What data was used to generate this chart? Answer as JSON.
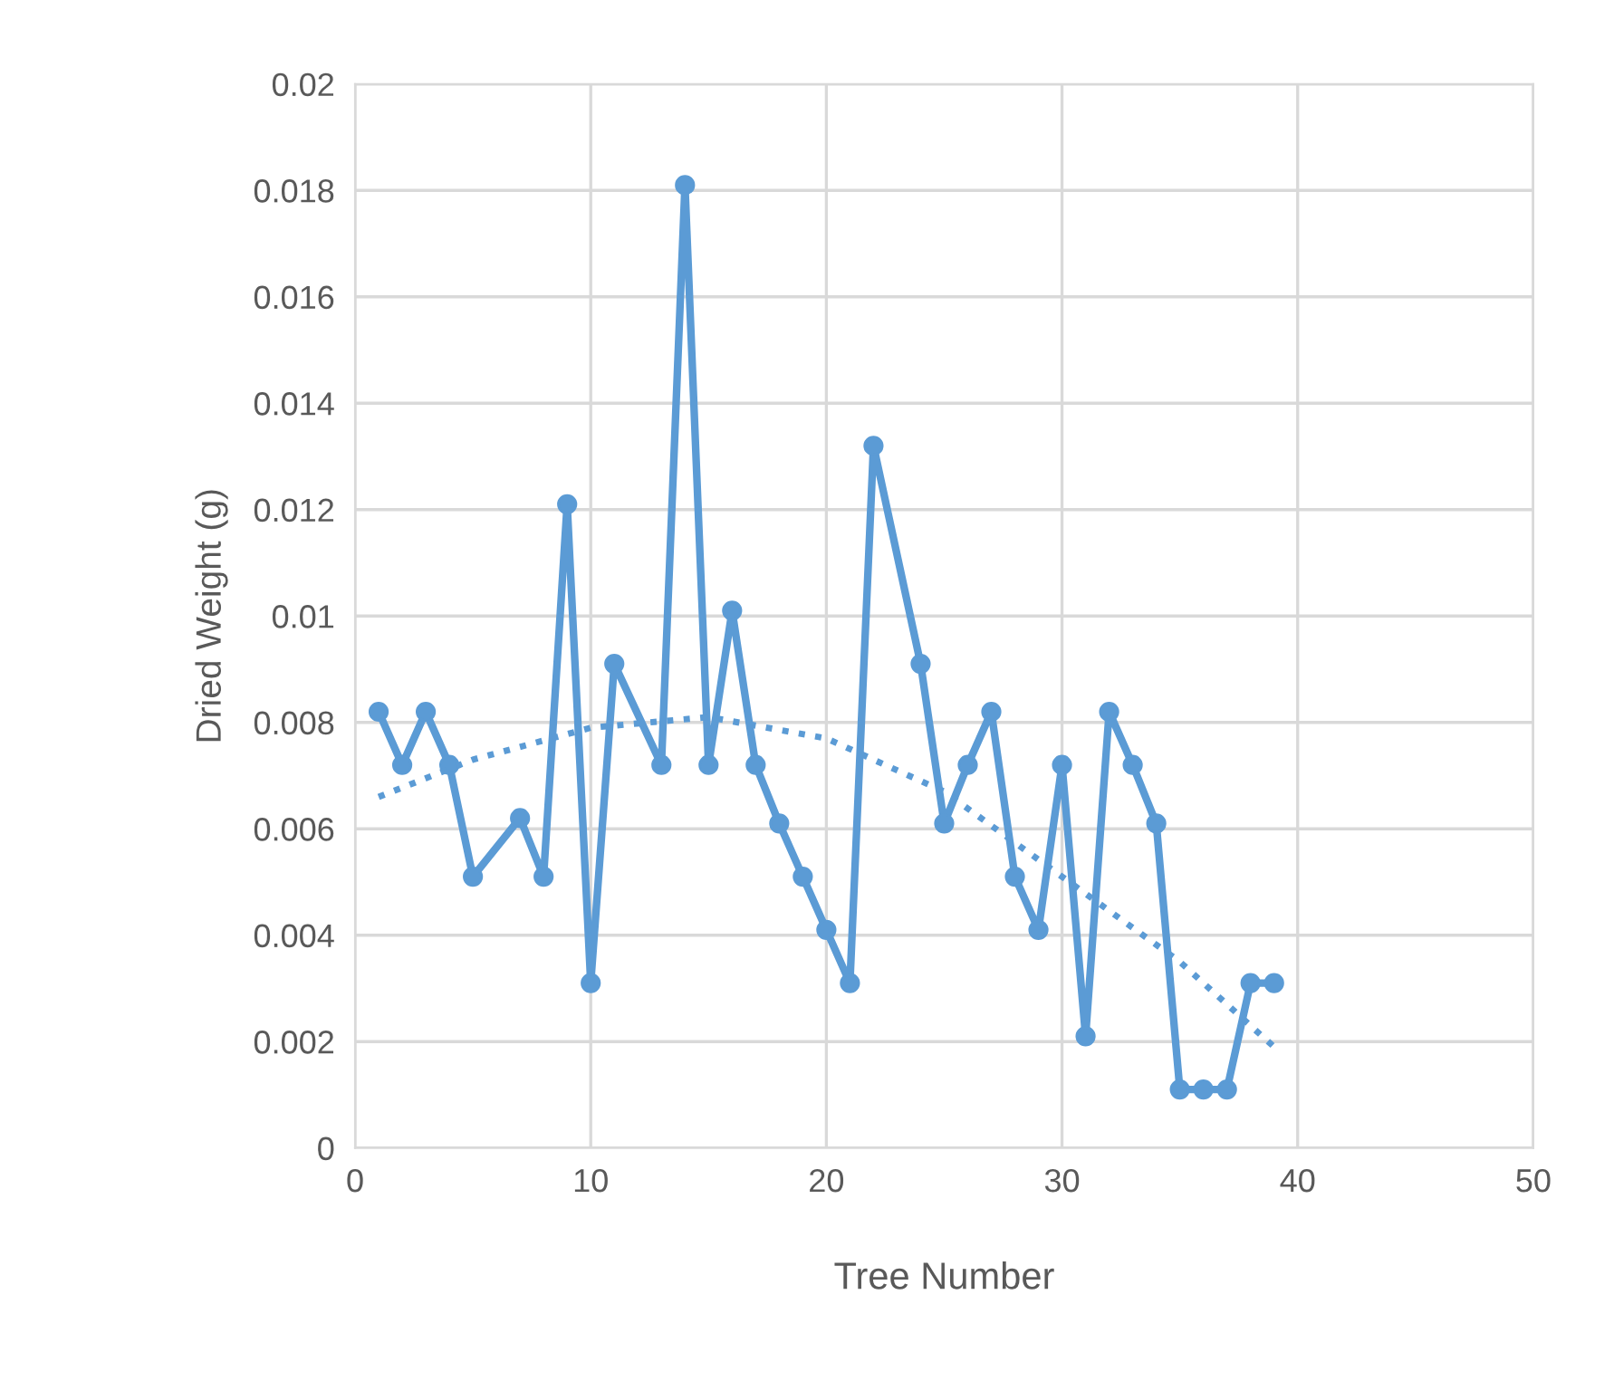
{
  "chart_data": {
    "type": "line",
    "xlabel": "Tree Number",
    "ylabel": "Dried Weight (g)",
    "xlim": [
      0,
      50
    ],
    "xticks": [
      0,
      10,
      20,
      30,
      40,
      50
    ],
    "ylim": [
      0,
      0.02
    ],
    "yticks": [
      0,
      0.002,
      0.004,
      0.006,
      0.008,
      0.01,
      0.012,
      0.014,
      0.016,
      0.018,
      0.02
    ],
    "grid": true,
    "legend": false,
    "series": [
      {
        "color": "#5b9bd5",
        "marker": "circle",
        "line_style": "solid",
        "x": [
          1,
          2,
          3,
          4,
          5,
          7,
          8,
          9,
          10,
          11,
          13,
          14,
          15,
          16,
          17,
          18,
          19,
          20,
          21,
          22,
          24,
          25,
          26,
          27,
          28,
          29,
          30,
          31,
          32,
          33,
          34,
          35,
          36,
          37,
          38,
          39
        ],
        "values": [
          0.0082,
          0.0072,
          0.0082,
          0.0072,
          0.0051,
          0.0062,
          0.0051,
          0.0121,
          0.0031,
          0.0091,
          0.0072,
          0.0181,
          0.0072,
          0.0101,
          0.0072,
          0.0061,
          0.0051,
          0.0041,
          0.0031,
          0.0132,
          0.0091,
          0.0061,
          0.0072,
          0.0082,
          0.0051,
          0.0041,
          0.0072,
          0.0021,
          0.0082,
          0.0072,
          0.0061,
          0.0011,
          0.0011,
          0.0011,
          0.0031,
          0.0031
        ]
      },
      {
        "color": "#5b9bd5",
        "marker": "none",
        "line_style": "dotted",
        "x": [
          1,
          5,
          10,
          15,
          20,
          25,
          30,
          35,
          39
        ],
        "values": [
          0.0066,
          0.0073,
          0.0079,
          0.0081,
          0.0077,
          0.0067,
          0.0051,
          0.0035,
          0.0019
        ]
      }
    ]
  }
}
